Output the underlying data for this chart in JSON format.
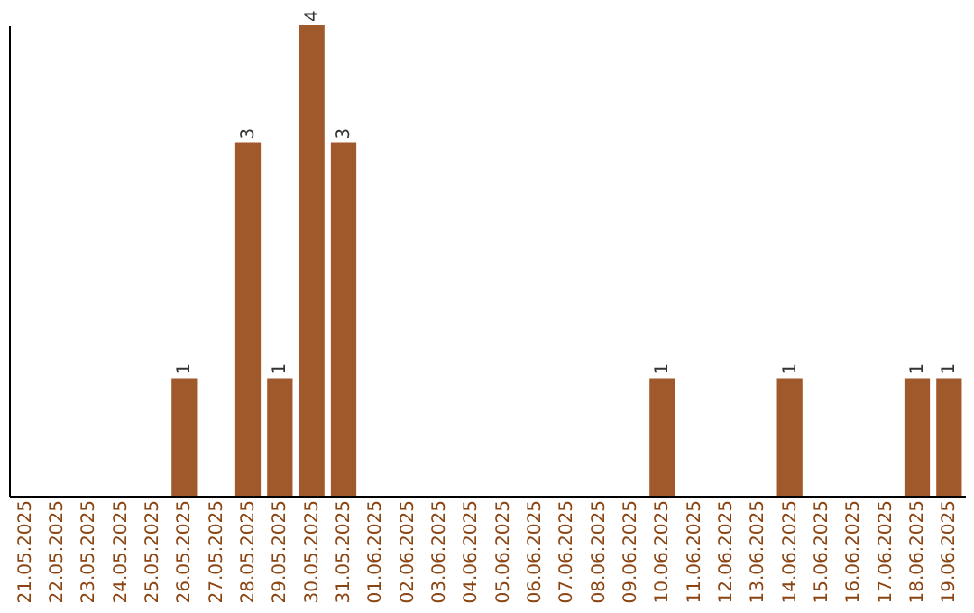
{
  "chart_data": {
    "type": "bar",
    "categories": [
      "21.05.2025",
      "22.05.2025",
      "23.05.2025",
      "24.05.2025",
      "25.05.2025",
      "26.05.2025",
      "27.05.2025",
      "28.05.2025",
      "29.05.2025",
      "30.05.2025",
      "31.05.2025",
      "01.06.2025",
      "02.06.2025",
      "03.06.2025",
      "04.06.2025",
      "05.06.2025",
      "06.06.2025",
      "07.06.2025",
      "08.06.2025",
      "09.06.2025",
      "10.06.2025",
      "11.06.2025",
      "12.06.2025",
      "13.06.2025",
      "14.06.2025",
      "15.06.2025",
      "16.06.2025",
      "17.06.2025",
      "18.06.2025",
      "19.06.2025"
    ],
    "values": [
      0,
      0,
      0,
      0,
      0,
      1,
      0,
      3,
      1,
      4,
      3,
      0,
      0,
      0,
      0,
      0,
      0,
      0,
      0,
      0,
      1,
      0,
      0,
      0,
      1,
      0,
      0,
      0,
      1,
      1
    ],
    "value_labels": [
      null,
      null,
      null,
      null,
      null,
      "1",
      null,
      "3",
      "1",
      "4",
      "3",
      null,
      null,
      null,
      null,
      null,
      null,
      null,
      null,
      null,
      "1",
      null,
      null,
      null,
      "1",
      null,
      null,
      null,
      "1",
      "1"
    ],
    "color": "#a0592a",
    "tick_labels": "x",
    "grid": false
  }
}
